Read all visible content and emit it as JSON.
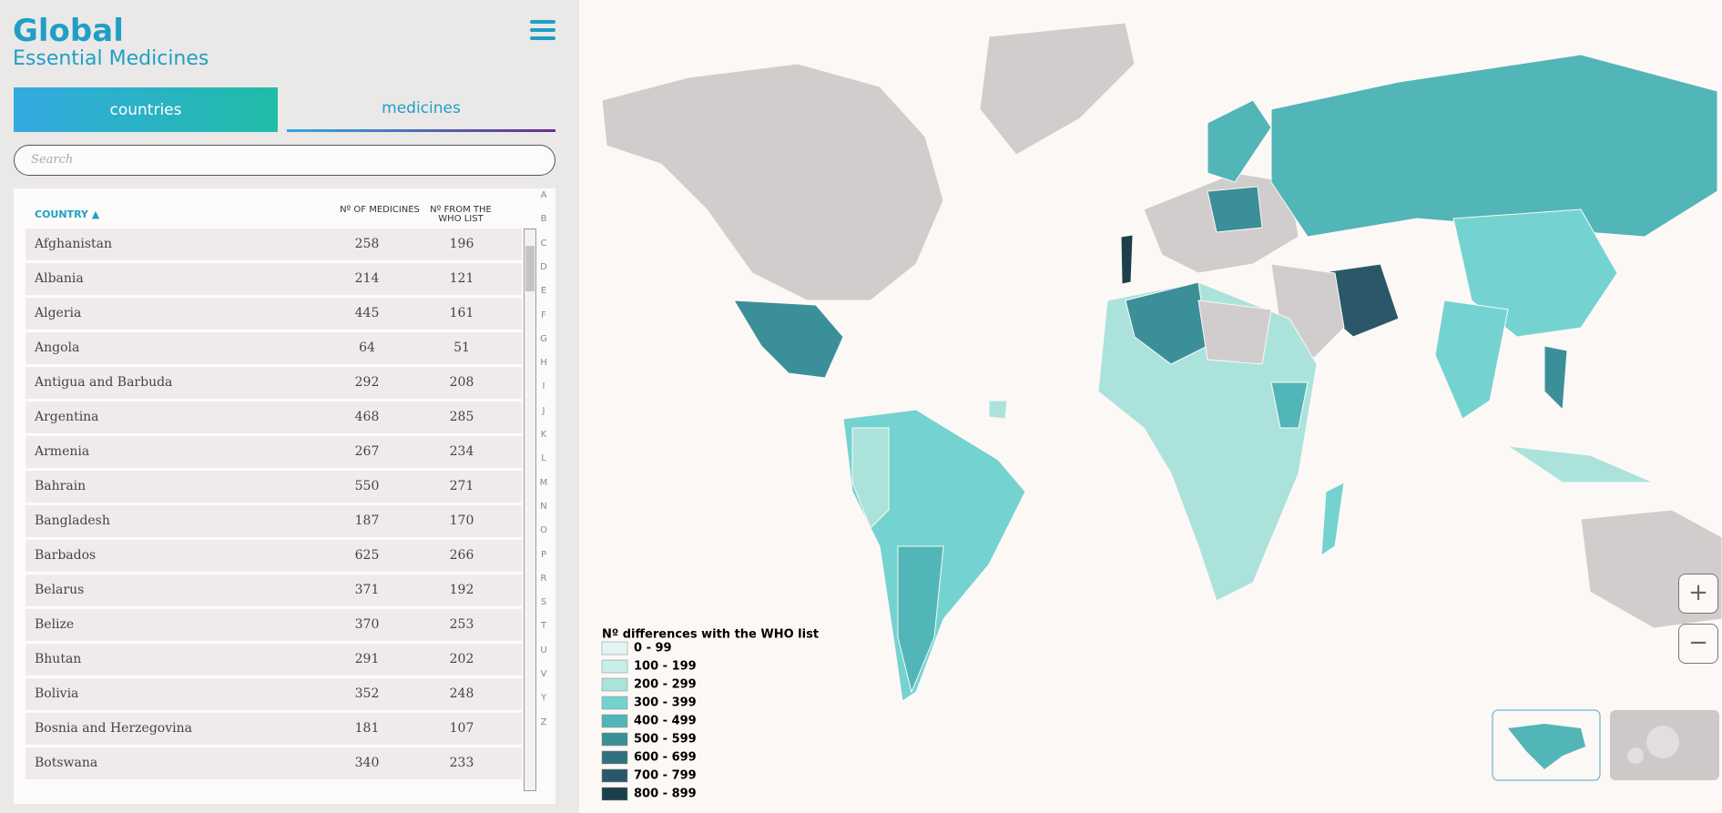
{
  "header": {
    "title": "Global",
    "subtitle": "Essential Medicines"
  },
  "tabs": [
    "countries",
    "medicines"
  ],
  "search_placeholder": "Search",
  "table": {
    "headers": [
      "COUNTRY",
      "Nº OF MEDICINES",
      "Nº FROM THE WHO LIST"
    ],
    "rows": [
      [
        "Afghanistan",
        258,
        196
      ],
      [
        "Albania",
        214,
        121
      ],
      [
        "Algeria",
        445,
        161
      ],
      [
        "Angola",
        64,
        51
      ],
      [
        "Antigua and Barbuda",
        292,
        208
      ],
      [
        "Argentina",
        468,
        285
      ],
      [
        "Armenia",
        267,
        234
      ],
      [
        "Bahrain",
        550,
        271
      ],
      [
        "Bangladesh",
        187,
        170
      ],
      [
        "Barbados",
        625,
        266
      ],
      [
        "Belarus",
        371,
        192
      ],
      [
        "Belize",
        370,
        253
      ],
      [
        "Bhutan",
        291,
        202
      ],
      [
        "Bolivia",
        352,
        248
      ],
      [
        "Bosnia and Herzegovina",
        181,
        107
      ],
      [
        "Botswana",
        340,
        233
      ]
    ]
  },
  "alphabet": [
    "A",
    "B",
    "C",
    "D",
    "E",
    "F",
    "G",
    "H",
    "I",
    "J",
    "K",
    "L",
    "M",
    "N",
    "O",
    "P",
    "R",
    "S",
    "T",
    "U",
    "V",
    "Y",
    "Z"
  ],
  "legend": {
    "title": "Nº differences with the WHO list",
    "items": [
      {
        "label": "0 - 99",
        "color": "#e2f5f2"
      },
      {
        "label": "100 - 199",
        "color": "#c8eee8"
      },
      {
        "label": "200 - 299",
        "color": "#abe3dc"
      },
      {
        "label": "300 - 399",
        "color": "#74d3d0"
      },
      {
        "label": "400 - 499",
        "color": "#52b5b8"
      },
      {
        "label": "500 - 599",
        "color": "#3b8f99"
      },
      {
        "label": "600 - 699",
        "color": "#32707e"
      },
      {
        "label": "700 - 799",
        "color": "#2a5868"
      },
      {
        "label": "800 - 899",
        "color": "#1d3f4c"
      }
    ]
  },
  "zoom": [
    "+",
    "−"
  ]
}
